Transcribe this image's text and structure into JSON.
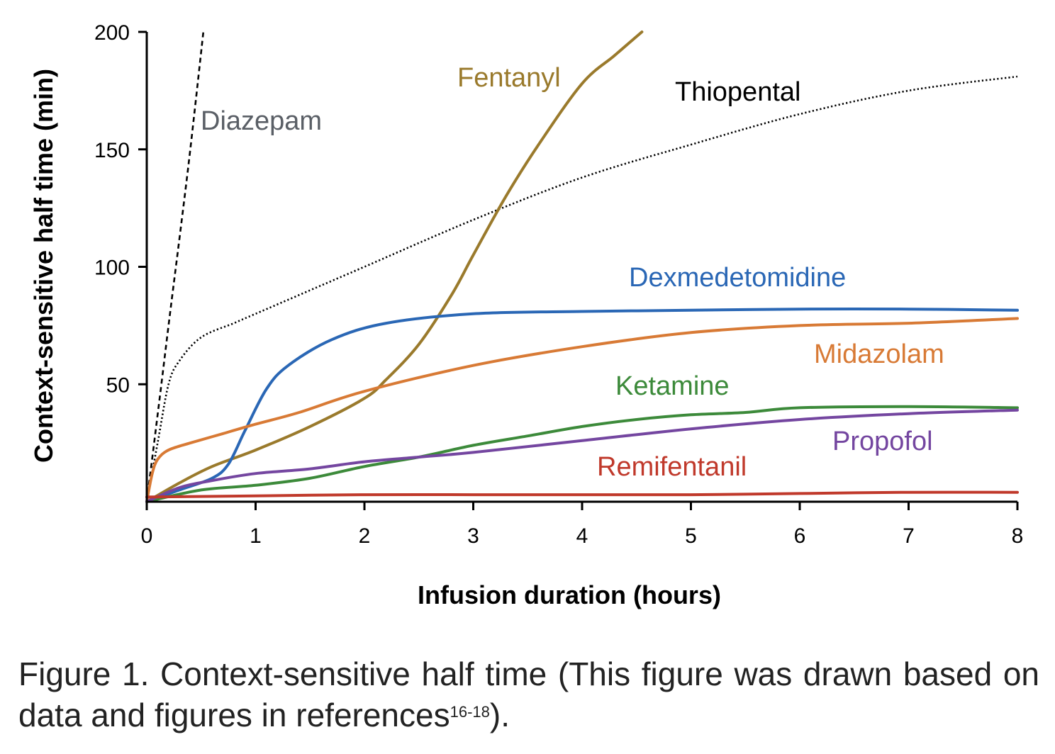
{
  "chart_data": {
    "type": "line",
    "xlabel": "Infusion duration (hours)",
    "ylabel": "Context-sensitive half time (min)",
    "xlim": [
      0,
      8
    ],
    "ylim": [
      0,
      200
    ],
    "xticks": [
      "0",
      "1",
      "2",
      "3",
      "4",
      "5",
      "6",
      "7",
      "8"
    ],
    "yticks": [
      "50",
      "100",
      "150",
      "200"
    ],
    "grid": false,
    "legend": "inline labels",
    "series": [
      {
        "name": "Diazepam",
        "color": "#5a5f66",
        "line_color": "#000000",
        "dash": "dashed",
        "points": [
          [
            0,
            0
          ],
          [
            0.1,
            37
          ],
          [
            0.2,
            75
          ],
          [
            0.3,
            112
          ],
          [
            0.4,
            150
          ],
          [
            0.52,
            200
          ]
        ]
      },
      {
        "name": "Thiopental",
        "color": "#000000",
        "line_color": "#000000",
        "dash": "dotted",
        "points": [
          [
            0,
            0
          ],
          [
            0.1,
            25
          ],
          [
            0.2,
            50
          ],
          [
            0.3,
            60
          ],
          [
            0.5,
            70
          ],
          [
            0.8,
            76
          ],
          [
            1,
            80
          ],
          [
            1.5,
            90
          ],
          [
            2,
            100
          ],
          [
            3,
            120
          ],
          [
            4,
            138
          ],
          [
            5,
            152
          ],
          [
            6,
            165
          ],
          [
            7,
            175
          ],
          [
            8,
            181
          ]
        ]
      },
      {
        "name": "Fentanyl",
        "color": "#9a7a2c",
        "line_color": "#9a7a2c",
        "dash": "solid",
        "points": [
          [
            0,
            0
          ],
          [
            0.3,
            8
          ],
          [
            0.6,
            15
          ],
          [
            1,
            22
          ],
          [
            1.5,
            32
          ],
          [
            2,
            44
          ],
          [
            2.2,
            52
          ],
          [
            2.5,
            67
          ],
          [
            2.8,
            88
          ],
          [
            3,
            105
          ],
          [
            3.3,
            130
          ],
          [
            3.6,
            152
          ],
          [
            4,
            178
          ],
          [
            4.3,
            190
          ],
          [
            4.55,
            200
          ]
        ]
      },
      {
        "name": "Dexmedetomidine",
        "color": "#2a67b5",
        "line_color": "#2a67b5",
        "dash": "solid",
        "points": [
          [
            0,
            0
          ],
          [
            0.3,
            5
          ],
          [
            0.6,
            10
          ],
          [
            0.75,
            16
          ],
          [
            0.9,
            30
          ],
          [
            1.1,
            48
          ],
          [
            1.3,
            58
          ],
          [
            1.7,
            69
          ],
          [
            2.2,
            76
          ],
          [
            3,
            80
          ],
          [
            4,
            81
          ],
          [
            5,
            81.5
          ],
          [
            6,
            82
          ],
          [
            7,
            82
          ],
          [
            8,
            81.5
          ]
        ]
      },
      {
        "name": "Midazolam",
        "color": "#d87a35",
        "line_color": "#d87a35",
        "dash": "solid",
        "points": [
          [
            0,
            0
          ],
          [
            0.05,
            12
          ],
          [
            0.1,
            18
          ],
          [
            0.2,
            22
          ],
          [
            0.4,
            25
          ],
          [
            0.7,
            29
          ],
          [
            1,
            33
          ],
          [
            1.4,
            38
          ],
          [
            2,
            47
          ],
          [
            3,
            58
          ],
          [
            4,
            66
          ],
          [
            5,
            72
          ],
          [
            6,
            75
          ],
          [
            7,
            76
          ],
          [
            8,
            78
          ]
        ]
      },
      {
        "name": "Ketamine",
        "color": "#3c8a3a",
        "line_color": "#3c8a3a",
        "dash": "solid",
        "points": [
          [
            0,
            0
          ],
          [
            0.5,
            5
          ],
          [
            1,
            7
          ],
          [
            1.5,
            10
          ],
          [
            2,
            15
          ],
          [
            2.5,
            19
          ],
          [
            3,
            24
          ],
          [
            3.5,
            28
          ],
          [
            4,
            32
          ],
          [
            4.5,
            35
          ],
          [
            5,
            37
          ],
          [
            5.5,
            38
          ],
          [
            6,
            40
          ],
          [
            7,
            40.5
          ],
          [
            8,
            40
          ]
        ]
      },
      {
        "name": "Propofol",
        "color": "#7446a0",
        "line_color": "#7446a0",
        "dash": "solid",
        "points": [
          [
            0,
            0
          ],
          [
            0.3,
            6
          ],
          [
            0.6,
            9
          ],
          [
            1,
            12
          ],
          [
            1.5,
            14
          ],
          [
            2,
            17
          ],
          [
            2.5,
            19
          ],
          [
            3,
            21
          ],
          [
            4,
            26
          ],
          [
            5,
            31
          ],
          [
            6,
            35
          ],
          [
            7,
            37.5
          ],
          [
            8,
            39
          ]
        ]
      },
      {
        "name": "Remifentanil",
        "color": "#c0392b",
        "line_color": "#c0392b",
        "dash": "solid",
        "points": [
          [
            0,
            2
          ],
          [
            1,
            2.5
          ],
          [
            2,
            3
          ],
          [
            3,
            3
          ],
          [
            4,
            3
          ],
          [
            5,
            3
          ],
          [
            6,
            3.5
          ],
          [
            7,
            4
          ],
          [
            8,
            4
          ]
        ]
      }
    ]
  },
  "caption": {
    "text": "Figure 1. Context-sensitive half time (This figure was drawn based on data and figures in references",
    "superscript": "16-18",
    "suffix": ")."
  }
}
